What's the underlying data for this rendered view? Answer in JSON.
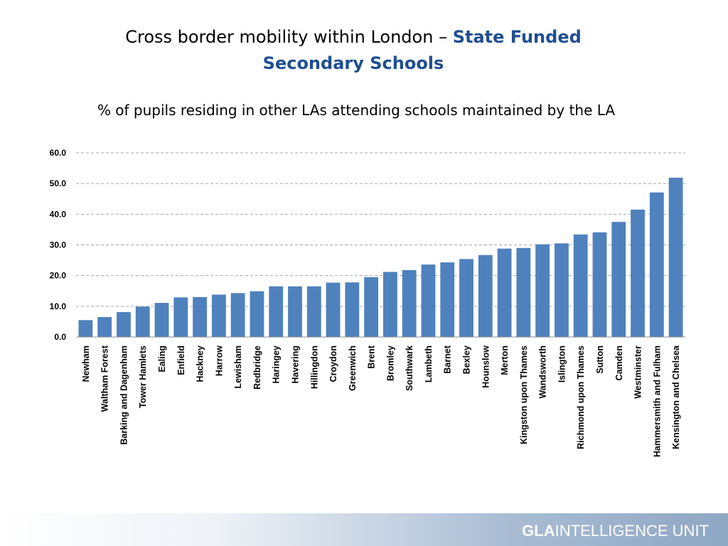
{
  "title": {
    "line1_plain": "Cross border mobility within London – ",
    "line1_accent": "State Funded",
    "line2_accent": "Secondary Schools"
  },
  "subtitle": "% of pupils residing in other LAs attending schools maintained by the LA",
  "footer": {
    "logo_bold": "GLA",
    "logo_rest": "INTELLIGENCE UNIT"
  },
  "colors": {
    "bar": "#4f81bd",
    "title_accent": "#1f4e91",
    "grid": "#a6a6a6"
  },
  "chart_data": {
    "type": "bar",
    "categories": [
      "Newham",
      "Waltham Forest",
      "Barking and Dagenham",
      "Tower Hamlets",
      "Ealing",
      "Enfield",
      "Hackney",
      "Harrow",
      "Lewisham",
      "Redbridge",
      "Haringey",
      "Havering",
      "Hillingdon",
      "Croydon",
      "Greenwich",
      "Brent",
      "Bromley",
      "Southwark",
      "Lambeth",
      "Barnet",
      "Bexley",
      "Hounslow",
      "Merton",
      "Kingston upon Thames",
      "Wandsworth",
      "Islington",
      "Richmond upon Thames",
      "Sutton",
      "Camden",
      "Westminster",
      "Hammersmith and Fulham",
      "Kensington and Chelsea"
    ],
    "values": [
      5.5,
      6.5,
      8.1,
      9.9,
      11.1,
      12.9,
      13.0,
      13.8,
      14.3,
      14.9,
      16.5,
      16.5,
      16.5,
      17.7,
      17.8,
      19.5,
      21.2,
      21.8,
      23.6,
      24.3,
      25.4,
      26.7,
      28.8,
      29.0,
      30.2,
      30.5,
      33.4,
      34.1,
      37.5,
      41.5,
      47.1,
      51.9
    ],
    "yticks": [
      "60.0",
      "50.0",
      "40.0",
      "30.0",
      "20.0",
      "10.0",
      "0.0"
    ],
    "ylim": [
      0,
      60
    ],
    "grid": "dashed horizontal",
    "legend": "none"
  }
}
